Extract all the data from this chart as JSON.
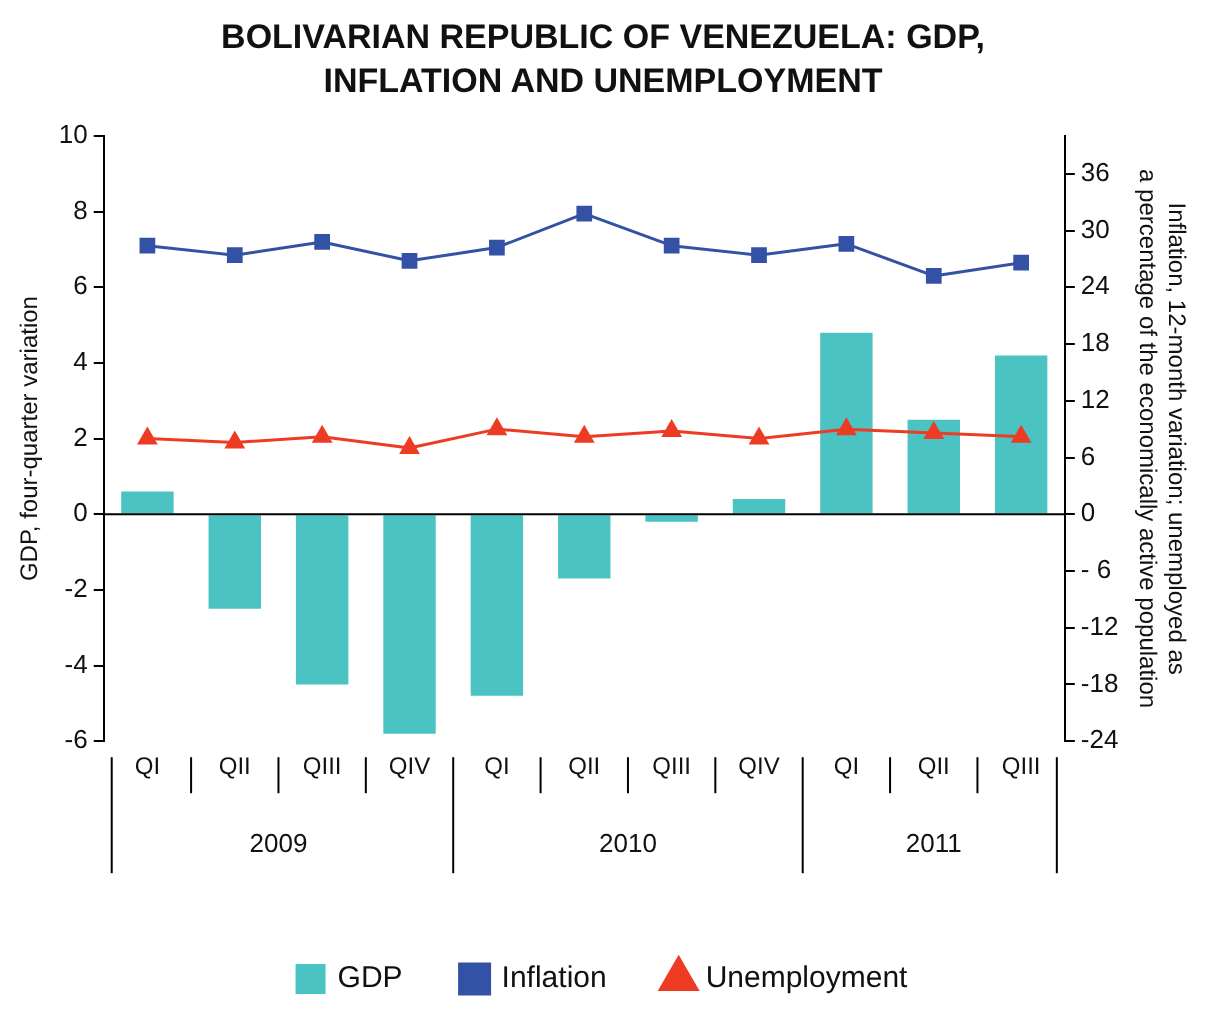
{
  "chart_data": {
    "type": "bar",
    "title": "BOLIVARIAN REPUBLIC OF VENEZUELA: GDP, INFLATION AND UNEMPLOYMENT",
    "categories": [
      "QI",
      "QII",
      "QIII",
      "QIV",
      "QI",
      "QII",
      "QIII",
      "QIV",
      "QI",
      "QII",
      "QIII"
    ],
    "series": [
      {
        "name": "GDP",
        "color": "#4bc3c3",
        "values": [
          0.6,
          -2.5,
          -4.5,
          -5.8,
          -4.8,
          -1.7,
          -0.2,
          0.4,
          4.8,
          2.5,
          4.2
        ]
      },
      {
        "name": "Inflation",
        "type": "line",
        "axis": "y2",
        "marker": "square",
        "color": "#3352a5",
        "values": [
          28.4,
          27.4,
          28.8,
          26.8,
          28.2,
          31.8,
          28.4,
          27.4,
          28.6,
          25.2,
          26.6
        ]
      },
      {
        "name": "Unemployment",
        "type": "line",
        "axis": "y2",
        "marker": "triangle",
        "color": "#ee3b24",
        "values": [
          8.0,
          7.6,
          8.2,
          7.0,
          9.0,
          8.2,
          8.8,
          8.0,
          9.0,
          8.6,
          8.2
        ]
      }
    ],
    "ylabel": "GDP, four-quarter variation",
    "y2label": "Inflation, 12-month variation; unemployed as a percentage of the economically active population",
    "ylim": [
      -6,
      10
    ],
    "yticks": [
      -6,
      -4,
      -2,
      0,
      2,
      4,
      6,
      8,
      10
    ],
    "y2lim": [
      -24,
      40
    ],
    "y2ticks": [
      -24,
      -18,
      -12,
      {
        "value": -6,
        "label": "- 6"
      },
      0,
      6,
      12,
      18,
      24,
      30,
      36
    ],
    "annotations": [
      "2009",
      "2010",
      "2011"
    ],
    "ref_lines": [
      {
        "axis": "y",
        "value": 0,
        "color": "#000000"
      }
    ],
    "legend": "bottom",
    "grid": false
  }
}
